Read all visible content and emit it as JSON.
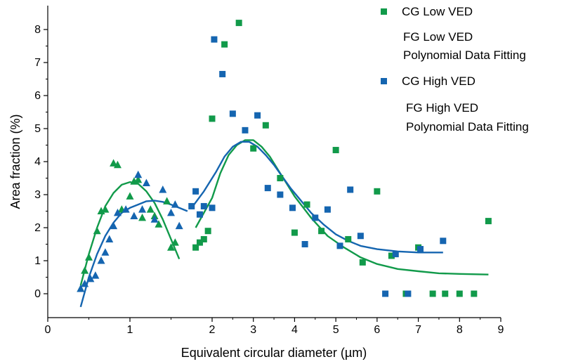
{
  "chart_data": {
    "type": "scatter",
    "title": "",
    "xlabel": "Equivalent circular diameter (µm)",
    "ylabel": "Area fraction (%)",
    "x_ticks": [
      {
        "label": "0",
        "value": 0
      },
      {
        "label": "1",
        "value": 1
      },
      {
        "label": "2",
        "value": 2
      },
      {
        "label": "3",
        "value": 3
      },
      {
        "label": "4",
        "value": 4
      },
      {
        "label": "5",
        "value": 5
      },
      {
        "label": "6",
        "value": 6
      },
      {
        "label": "7",
        "value": 7
      },
      {
        "label": "8",
        "value": 8
      },
      {
        "label": "9",
        "value": 9
      }
    ],
    "y_ticks": [
      0,
      1,
      2,
      3,
      4,
      5,
      6,
      7,
      8
    ],
    "ylim": [
      -0.45,
      8.6
    ],
    "legend_position": "top-right",
    "colors": {
      "green": "#119a4a",
      "blue": "#1565b0"
    },
    "legend": [
      {
        "label": "CG Low VED",
        "marker": "square",
        "color": "#119a4a"
      },
      {
        "label": "FG Low VED",
        "marker": "none",
        "color": "#119a4a"
      },
      {
        "label": "Polynomial Data Fitting",
        "marker": "none",
        "color": "#119a4a"
      },
      {
        "label": "CG High VED",
        "marker": "square",
        "color": "#1565b0"
      },
      {
        "label": "FG High VED",
        "marker": "none",
        "color": "#1565b0"
      },
      {
        "label": "Polynomial Data Fitting",
        "marker": "none",
        "color": "#1565b0"
      }
    ],
    "series": [
      {
        "key": "fg_low",
        "marker": "triangle",
        "color": "#119a4a",
        "points": [
          [
            0.4,
            0.15
          ],
          [
            0.45,
            0.7
          ],
          [
            0.5,
            1.1
          ],
          [
            0.6,
            1.9
          ],
          [
            0.65,
            2.5
          ],
          [
            0.7,
            2.55
          ],
          [
            0.8,
            3.95
          ],
          [
            0.85,
            3.9
          ],
          [
            0.9,
            2.55
          ],
          [
            1.0,
            2.95
          ],
          [
            1.05,
            3.4
          ],
          [
            1.1,
            3.45
          ],
          [
            1.15,
            2.3
          ],
          [
            1.25,
            2.55
          ],
          [
            1.3,
            2.35
          ],
          [
            1.35,
            2.1
          ],
          [
            1.45,
            2.8
          ],
          [
            1.5,
            1.4
          ],
          [
            1.55,
            1.55
          ]
        ]
      },
      {
        "key": "fg_high",
        "marker": "triangle",
        "color": "#1565b0",
        "points": [
          [
            0.4,
            0.15
          ],
          [
            0.45,
            0.3
          ],
          [
            0.52,
            0.45
          ],
          [
            0.58,
            0.55
          ],
          [
            0.65,
            1.0
          ],
          [
            0.7,
            1.25
          ],
          [
            0.75,
            1.65
          ],
          [
            0.8,
            2.05
          ],
          [
            0.85,
            2.45
          ],
          [
            0.95,
            2.55
          ],
          [
            1.05,
            2.35
          ],
          [
            1.1,
            3.6
          ],
          [
            1.15,
            2.55
          ],
          [
            1.2,
            3.35
          ],
          [
            1.3,
            2.25
          ],
          [
            1.4,
            3.15
          ],
          [
            1.5,
            2.45
          ],
          [
            1.55,
            2.7
          ],
          [
            1.6,
            2.05
          ]
        ]
      },
      {
        "key": "cg_low",
        "marker": "square",
        "color": "#119a4a",
        "points": [
          [
            1.8,
            1.4
          ],
          [
            1.85,
            1.55
          ],
          [
            1.9,
            1.65
          ],
          [
            1.95,
            1.9
          ],
          [
            2.0,
            5.3
          ],
          [
            2.3,
            7.55
          ],
          [
            2.65,
            8.2
          ],
          [
            3.0,
            4.4
          ],
          [
            3.3,
            5.1
          ],
          [
            3.65,
            3.5
          ],
          [
            4.0,
            1.85
          ],
          [
            4.3,
            2.7
          ],
          [
            4.65,
            1.9
          ],
          [
            5.0,
            4.35
          ],
          [
            5.3,
            1.65
          ],
          [
            5.65,
            0.95
          ],
          [
            6.0,
            3.1
          ],
          [
            6.35,
            1.15
          ],
          [
            6.7,
            0.0
          ],
          [
            7.0,
            1.4
          ],
          [
            7.35,
            0.0
          ],
          [
            7.65,
            0.0
          ],
          [
            8.0,
            0.0
          ],
          [
            8.35,
            0.0
          ],
          [
            8.7,
            2.2
          ]
        ]
      },
      {
        "key": "cg_high",
        "marker": "square",
        "color": "#1565b0",
        "points": [
          [
            1.75,
            2.65
          ],
          [
            1.8,
            3.1
          ],
          [
            1.85,
            2.4
          ],
          [
            1.9,
            2.65
          ],
          [
            2.0,
            2.6
          ],
          [
            2.05,
            7.7
          ],
          [
            2.25,
            6.65
          ],
          [
            2.5,
            5.45
          ],
          [
            2.8,
            4.95
          ],
          [
            3.1,
            5.4
          ],
          [
            3.35,
            3.2
          ],
          [
            3.65,
            3.0
          ],
          [
            3.95,
            2.6
          ],
          [
            4.25,
            1.5
          ],
          [
            4.5,
            2.3
          ],
          [
            4.8,
            2.55
          ],
          [
            5.1,
            1.45
          ],
          [
            5.35,
            3.15
          ],
          [
            5.6,
            1.75
          ],
          [
            6.2,
            0.0
          ],
          [
            6.45,
            1.2
          ],
          [
            6.75,
            0.0
          ],
          [
            7.05,
            1.35
          ],
          [
            7.6,
            1.6
          ]
        ]
      }
    ],
    "fits": [
      {
        "key": "fit_fg_low",
        "color": "#119a4a",
        "points": [
          [
            0.4,
            0.25
          ],
          [
            0.5,
            1.2
          ],
          [
            0.6,
            2.0
          ],
          [
            0.7,
            2.65
          ],
          [
            0.8,
            3.05
          ],
          [
            0.9,
            3.3
          ],
          [
            1.0,
            3.38
          ],
          [
            1.1,
            3.33
          ],
          [
            1.2,
            3.1
          ],
          [
            1.3,
            2.75
          ],
          [
            1.4,
            2.25
          ],
          [
            1.5,
            1.65
          ],
          [
            1.6,
            1.05
          ]
        ]
      },
      {
        "key": "fit_fg_high",
        "color": "#1565b0",
        "points": [
          [
            0.4,
            -0.4
          ],
          [
            0.5,
            0.5
          ],
          [
            0.6,
            1.2
          ],
          [
            0.7,
            1.75
          ],
          [
            0.8,
            2.15
          ],
          [
            0.9,
            2.45
          ],
          [
            1.0,
            2.6
          ],
          [
            1.1,
            2.7
          ],
          [
            1.2,
            2.8
          ],
          [
            1.3,
            2.82
          ],
          [
            1.4,
            2.78
          ],
          [
            1.5,
            2.7
          ],
          [
            1.6,
            2.6
          ],
          [
            1.7,
            2.5
          ]
        ]
      },
      {
        "key": "fit_cg_low",
        "color": "#119a4a",
        "points": [
          [
            1.8,
            2.0
          ],
          [
            2.0,
            2.9
          ],
          [
            2.2,
            3.65
          ],
          [
            2.4,
            4.2
          ],
          [
            2.6,
            4.5
          ],
          [
            2.8,
            4.65
          ],
          [
            3.0,
            4.65
          ],
          [
            3.2,
            4.45
          ],
          [
            3.4,
            4.15
          ],
          [
            3.6,
            3.75
          ],
          [
            3.8,
            3.35
          ],
          [
            4.0,
            2.95
          ],
          [
            4.4,
            2.3
          ],
          [
            4.8,
            1.75
          ],
          [
            5.2,
            1.4
          ],
          [
            5.6,
            1.1
          ],
          [
            6.0,
            0.9
          ],
          [
            6.5,
            0.75
          ],
          [
            7.0,
            0.68
          ],
          [
            7.5,
            0.62
          ],
          [
            8.0,
            0.6
          ],
          [
            8.7,
            0.58
          ]
        ]
      },
      {
        "key": "fit_cg_high",
        "color": "#1565b0",
        "points": [
          [
            1.75,
            2.6
          ],
          [
            1.9,
            3.1
          ],
          [
            2.1,
            3.7
          ],
          [
            2.3,
            4.15
          ],
          [
            2.5,
            4.45
          ],
          [
            2.7,
            4.6
          ],
          [
            2.9,
            4.6
          ],
          [
            3.1,
            4.45
          ],
          [
            3.3,
            4.2
          ],
          [
            3.5,
            3.9
          ],
          [
            3.7,
            3.55
          ],
          [
            3.9,
            3.2
          ],
          [
            4.1,
            2.9
          ],
          [
            4.4,
            2.45
          ],
          [
            4.7,
            2.1
          ],
          [
            5.0,
            1.8
          ],
          [
            5.3,
            1.6
          ],
          [
            5.6,
            1.45
          ],
          [
            6.0,
            1.35
          ],
          [
            6.5,
            1.28
          ],
          [
            7.0,
            1.25
          ],
          [
            7.6,
            1.25
          ]
        ]
      }
    ]
  }
}
